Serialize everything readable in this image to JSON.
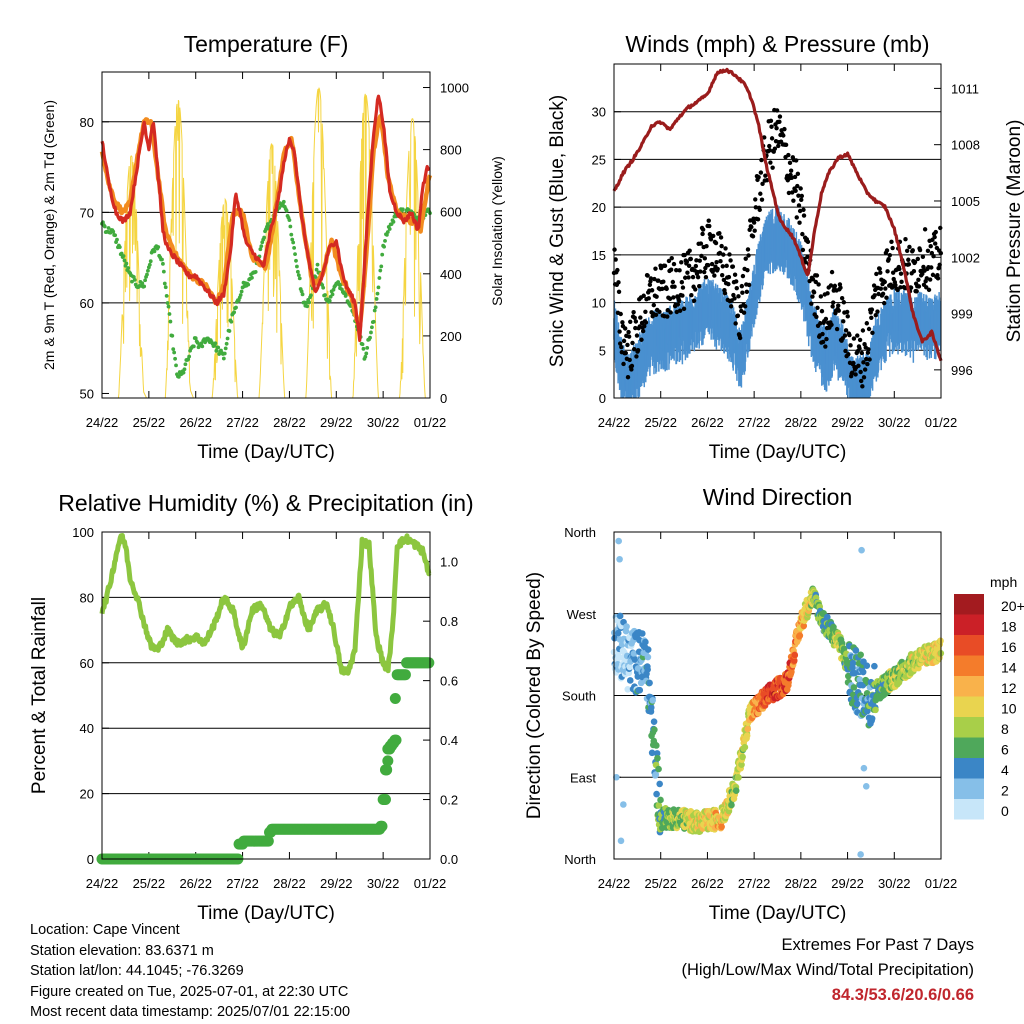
{
  "chart_data": [
    {
      "id": "temp",
      "type": "line",
      "title": "Temperature (F)",
      "xlabel": "Time (Day/UTC)",
      "ylabel": "2m & 9m T (Red, Orange) & 2m Td (Green)",
      "ylabel_right": "Solar Insolation (Yellow)",
      "x_ticks": [
        "24/22",
        "25/22",
        "26/22",
        "27/22",
        "28/22",
        "29/22",
        "30/22",
        "01/22"
      ],
      "xlim_days": [
        0,
        7
      ],
      "ylim": [
        49.5,
        85.5
      ],
      "y_ticks": [
        50,
        60,
        70,
        80
      ],
      "ylim_right": [
        0,
        1050
      ],
      "y_ticks_right": [
        0,
        200,
        400,
        600,
        800,
        1000
      ],
      "gridlines": [
        60,
        70,
        80
      ],
      "colors": {
        "t2m": "#d42a22",
        "t9m": "#f28c1f",
        "td": "#41ab3e",
        "solar": "#f5d542"
      },
      "series": [
        {
          "key": "t2m",
          "x": [
            0,
            0.15,
            0.3,
            0.45,
            0.6,
            0.75,
            0.9,
            1.0,
            1.05,
            1.1,
            1.2,
            1.3,
            1.4,
            1.55,
            1.7,
            1.85,
            2.0,
            2.15,
            2.3,
            2.45,
            2.6,
            2.75,
            2.85,
            2.95,
            3.05,
            3.15,
            3.3,
            3.45,
            3.6,
            3.75,
            3.9,
            4.0,
            4.1,
            4.25,
            4.4,
            4.55,
            4.7,
            4.85,
            5.0,
            5.1,
            5.2,
            5.3,
            5.4,
            5.5,
            5.6,
            5.7,
            5.8,
            5.9,
            6.0,
            6.15,
            6.3,
            6.45,
            6.6,
            6.75,
            6.85,
            6.95,
            7.0
          ],
          "y": [
            78,
            73,
            70,
            69,
            70,
            75,
            80,
            77,
            79,
            80,
            74,
            68,
            66,
            65,
            64,
            63,
            63,
            62,
            61,
            60,
            61,
            66,
            72,
            70,
            67,
            66,
            65,
            64,
            68,
            71,
            76,
            78,
            77,
            70,
            65,
            61,
            63,
            66,
            67,
            64,
            62,
            61,
            60,
            56,
            64,
            72,
            79,
            83,
            80,
            72,
            70,
            69,
            70,
            68,
            73,
            75,
            75
          ]
        },
        {
          "key": "t9m",
          "x": [
            0,
            0.15,
            0.3,
            0.45,
            0.6,
            0.75,
            0.9,
            1.05,
            1.2,
            1.35,
            1.6,
            1.9,
            2.2,
            2.45,
            2.6,
            2.8,
            3.0,
            3.2,
            3.5,
            3.7,
            3.9,
            4.05,
            4.25,
            4.5,
            4.7,
            4.9,
            5.1,
            5.3,
            5.5,
            5.65,
            5.8,
            5.95,
            6.1,
            6.3,
            6.6,
            6.8,
            6.95,
            7.0
          ],
          "y": [
            77,
            73,
            71,
            70,
            71,
            76,
            80,
            80,
            74,
            68,
            65,
            63,
            62,
            60,
            62,
            70,
            70,
            65,
            64,
            70,
            77,
            78,
            70,
            62,
            63,
            67,
            63,
            61,
            57,
            66,
            77,
            81,
            74,
            70,
            69,
            68,
            73,
            74
          ]
        },
        {
          "key": "td",
          "x": [
            0,
            0.1,
            0.2,
            0.3,
            0.45,
            0.6,
            0.75,
            0.9,
            1.0,
            1.1,
            1.2,
            1.3,
            1.4,
            1.5,
            1.6,
            1.7,
            1.85,
            2.0,
            2.1,
            2.2,
            2.3,
            2.45,
            2.6,
            2.75,
            2.9,
            3.0,
            3.1,
            3.2,
            3.3,
            3.4,
            3.5,
            3.6,
            3.7,
            3.8,
            3.9,
            4.0,
            4.1,
            4.2,
            4.3,
            4.4,
            4.5,
            4.6,
            4.7,
            4.8,
            4.9,
            5.0,
            5.1,
            5.2,
            5.3,
            5.4,
            5.5,
            5.6,
            5.7,
            5.8,
            5.9,
            6.0,
            6.1,
            6.2,
            6.3,
            6.45,
            6.6,
            6.75,
            6.9,
            7.0
          ],
          "y": [
            69,
            68,
            68,
            67,
            65,
            63,
            62,
            62,
            64,
            66,
            66,
            64,
            60,
            56,
            52,
            52,
            54,
            56,
            55,
            56,
            56,
            55,
            54,
            58,
            60,
            62,
            62,
            63,
            64,
            66,
            68,
            69,
            70,
            71,
            71,
            69,
            66,
            63,
            60,
            60,
            62,
            64,
            62,
            60,
            61,
            62,
            62,
            61,
            60,
            58,
            57,
            54,
            56,
            58,
            62,
            66,
            68,
            69,
            70,
            70,
            70,
            69,
            70,
            70
          ]
        }
      ],
      "solar_days": [
        {
          "rise": 0.35,
          "peak_day": 0.6,
          "peak": 780
        },
        {
          "rise": 1.35,
          "peak_day": 1.6,
          "peak": 960
        },
        {
          "rise": 2.35,
          "peak_day": 2.6,
          "peak": 640
        },
        {
          "rise": 3.35,
          "peak_day": 3.6,
          "peak": 820
        },
        {
          "rise": 4.35,
          "peak_day": 4.6,
          "peak": 1000
        },
        {
          "rise": 5.35,
          "peak_day": 5.6,
          "peak": 980
        },
        {
          "rise": 6.35,
          "peak_day": 6.6,
          "peak": 900
        }
      ]
    },
    {
      "id": "winds",
      "type": "line",
      "title": "Winds (mph) & Pressure (mb)",
      "xlabel": "Time (Day/UTC)",
      "ylabel": "Sonic Wind & Gust (Blue, Black)",
      "ylabel_right": "Station Pressure (Maroon)",
      "x_ticks": [
        "24/22",
        "25/22",
        "26/22",
        "27/22",
        "28/22",
        "29/22",
        "30/22",
        "01/22"
      ],
      "xlim_days": [
        0,
        7
      ],
      "ylim": [
        0,
        35
      ],
      "y_ticks": [
        0,
        5,
        10,
        15,
        20,
        25,
        30
      ],
      "ylim_right": [
        994.5,
        1012.3
      ],
      "y_ticks_right": [
        996,
        999,
        1002,
        1005,
        1008,
        1011
      ],
      "gridlines": [
        5,
        10,
        15,
        20,
        25,
        30
      ],
      "colors": {
        "wind": "#4a90d0",
        "gust": "#000000",
        "pressure": "#9a1c1c"
      },
      "series": [
        {
          "key": "wind",
          "x": [
            0,
            0.15,
            0.3,
            0.5,
            0.7,
            0.9,
            1.1,
            1.3,
            1.5,
            1.7,
            1.9,
            2.1,
            2.3,
            2.5,
            2.7,
            2.85,
            3.0,
            3.15,
            3.3,
            3.5,
            3.7,
            3.9,
            4.0,
            4.2,
            4.4,
            4.55,
            4.7,
            4.85,
            5.0,
            5.15,
            5.3,
            5.45,
            5.6,
            5.8,
            6.0,
            6.2,
            6.4,
            6.6,
            6.8,
            7.0
          ],
          "y": [
            8,
            4,
            2,
            4,
            6,
            7,
            7,
            8,
            8,
            9,
            10,
            10,
            9,
            8,
            5,
            8,
            12,
            15,
            17,
            18,
            17,
            15,
            14,
            9,
            6,
            5,
            7,
            6,
            4,
            2,
            2,
            3,
            6,
            8,
            9,
            9,
            8,
            9,
            8,
            9
          ]
        },
        {
          "key": "gust",
          "x": [
            0,
            0.15,
            0.3,
            0.5,
            0.7,
            0.9,
            1.1,
            1.3,
            1.5,
            1.7,
            1.9,
            2.1,
            2.3,
            2.5,
            2.7,
            2.85,
            3.0,
            3.15,
            3.3,
            3.5,
            3.7,
            3.9,
            4.0,
            4.2,
            4.4,
            4.55,
            4.7,
            4.85,
            5.0,
            5.15,
            5.3,
            5.45,
            5.6,
            5.8,
            6.0,
            6.2,
            6.4,
            6.6,
            6.8,
            7.0
          ],
          "y": [
            14,
            7,
            5,
            7,
            10,
            11,
            11,
            12,
            12,
            13,
            15,
            16,
            14,
            12,
            9,
            13,
            19,
            23,
            26,
            28,
            25,
            22,
            19,
            13,
            9,
            8,
            11,
            9,
            6,
            4,
            4,
            6,
            11,
            13,
            14,
            14,
            13,
            15,
            14,
            15
          ]
        },
        {
          "key": "pressure",
          "x": [
            0,
            0.2,
            0.4,
            0.6,
            0.8,
            1.0,
            1.2,
            1.4,
            1.6,
            1.8,
            2.0,
            2.2,
            2.4,
            2.6,
            2.8,
            2.95,
            3.1,
            3.25,
            3.4,
            3.55,
            3.7,
            3.85,
            4.0,
            4.15,
            4.3,
            4.45,
            4.6,
            4.8,
            5.0,
            5.2,
            5.4,
            5.6,
            5.8,
            6.0,
            6.2,
            6.4,
            6.6,
            6.8,
            7.0
          ],
          "y": [
            1005.5,
            1006.5,
            1007.2,
            1008,
            1009,
            1009.2,
            1008.8,
            1009.5,
            1010,
            1010.3,
            1010.7,
            1011.8,
            1012,
            1011.7,
            1011.2,
            1010.4,
            1009,
            1007,
            1005.5,
            1004,
            1003.5,
            1003,
            1002,
            1001,
            1003.5,
            1005.5,
            1006.5,
            1007.3,
            1007.5,
            1006.5,
            1005.5,
            1005,
            1004.7,
            1003.5,
            1001.5,
            999,
            997.5,
            998,
            996.5
          ]
        }
      ]
    },
    {
      "id": "rh",
      "type": "line",
      "title": "Relative Humidity (%) & Precipitation (in)",
      "xlabel": "Time (Day/UTC)",
      "ylabel": "Percent & Total Rainfall",
      "x_ticks": [
        "24/22",
        "25/22",
        "26/22",
        "27/22",
        "28/22",
        "29/22",
        "30/22",
        "01/22"
      ],
      "xlim_days": [
        0,
        7
      ],
      "ylim": [
        0,
        100
      ],
      "y_ticks": [
        0,
        20,
        40,
        60,
        80,
        100
      ],
      "ylim_right": [
        0,
        1.1
      ],
      "y_ticks_right": [
        "0.0",
        "0.2",
        "0.4",
        "0.6",
        "0.8",
        "1.0"
      ],
      "gridlines": [
        20,
        40,
        60,
        80
      ],
      "colors": {
        "rh": "#8cc63f",
        "precip": "#41ab3e"
      },
      "series": [
        {
          "key": "rh",
          "x": [
            0,
            0.1,
            0.2,
            0.3,
            0.4,
            0.5,
            0.6,
            0.75,
            0.9,
            1.05,
            1.2,
            1.4,
            1.6,
            1.8,
            2.0,
            2.2,
            2.4,
            2.6,
            2.8,
            3.0,
            3.2,
            3.4,
            3.6,
            3.8,
            4.0,
            4.2,
            4.4,
            4.6,
            4.8,
            4.95,
            5.1,
            5.25,
            5.4,
            5.55,
            5.7,
            5.85,
            6.0,
            6.1,
            6.2,
            6.3,
            6.5,
            6.7,
            6.85,
            7.0
          ],
          "y": [
            76,
            80,
            86,
            93,
            99,
            96,
            86,
            80,
            72,
            65,
            64,
            70,
            66,
            67,
            68,
            66,
            72,
            80,
            76,
            64,
            76,
            78,
            70,
            68,
            77,
            80,
            70,
            76,
            78,
            70,
            58,
            57,
            64,
            97,
            96,
            68,
            60,
            58,
            70,
            96,
            98,
            96,
            94,
            86
          ]
        },
        {
          "key": "precip",
          "x": [
            0,
            0.5,
            1,
            1.5,
            2,
            2.5,
            2.85,
            2.9,
            3.0,
            3.2,
            3.4,
            3.55,
            3.6,
            4.0,
            4.5,
            5.0,
            5.5,
            5.95,
            6.0,
            6.05,
            6.08,
            6.1,
            6.15,
            6.2,
            6.25,
            6.3,
            6.5,
            6.7,
            7.0
          ],
          "y": [
            0,
            0,
            0,
            0,
            0,
            0,
            0,
            0.05,
            0.06,
            0.06,
            0.06,
            0.09,
            0.1,
            0.1,
            0.1,
            0.1,
            0.1,
            0.11,
            0.2,
            0.3,
            0.33,
            0.37,
            0.38,
            0.39,
            0.4,
            0.62,
            0.66,
            0.66,
            0.66
          ]
        }
      ]
    },
    {
      "id": "dir",
      "type": "scatter",
      "title": "Wind Direction",
      "xlabel": "Time (Day/UTC)",
      "ylabel": "Direction (Colored By Speed)",
      "x_ticks": [
        "24/22",
        "25/22",
        "26/22",
        "27/22",
        "28/22",
        "29/22",
        "30/22",
        "01/22"
      ],
      "xlim_days": [
        0,
        7
      ],
      "ylim": [
        0,
        360
      ],
      "y_tick_labels": [
        "North",
        "East",
        "South",
        "West",
        "North"
      ],
      "y_tick_values": [
        0,
        90,
        180,
        270,
        360
      ],
      "colorbar": {
        "unit": "mph",
        "labels": [
          "20+",
          "18",
          "16",
          "14",
          "12",
          "10",
          "8",
          "6",
          "4",
          "2",
          "0"
        ],
        "colors": [
          "#a31b1f",
          "#cb2027",
          "#e84c26",
          "#f47c2b",
          "#f9b24b",
          "#e9d44f",
          "#a8cf49",
          "#4fa85b",
          "#3b86c6",
          "#86bfe8",
          "#c7e6f9"
        ]
      },
      "points_envelope": [
        {
          "x": 0.05,
          "dir": 240,
          "spd": 2
        },
        {
          "x": 0.3,
          "dir": 220,
          "spd": 3
        },
        {
          "x": 0.7,
          "dir": 215,
          "spd": 5
        },
        {
          "x": 1.0,
          "dir": 45,
          "spd": 7
        },
        {
          "x": 1.4,
          "dir": 45,
          "spd": 9
        },
        {
          "x": 1.8,
          "dir": 40,
          "spd": 11
        },
        {
          "x": 2.3,
          "dir": 45,
          "spd": 12
        },
        {
          "x": 2.6,
          "dir": 80,
          "spd": 9
        },
        {
          "x": 2.9,
          "dir": 160,
          "spd": 11
        },
        {
          "x": 3.3,
          "dir": 180,
          "spd": 18
        },
        {
          "x": 3.7,
          "dir": 195,
          "spd": 17
        },
        {
          "x": 4.0,
          "dir": 260,
          "spd": 13
        },
        {
          "x": 4.25,
          "dir": 290,
          "spd": 9
        },
        {
          "x": 4.5,
          "dir": 260,
          "spd": 6
        },
        {
          "x": 4.8,
          "dir": 240,
          "spd": 10
        },
        {
          "x": 5.1,
          "dir": 200,
          "spd": 5
        },
        {
          "x": 5.5,
          "dir": 180,
          "spd": 6
        },
        {
          "x": 6.0,
          "dir": 200,
          "spd": 9
        },
        {
          "x": 6.5,
          "dir": 220,
          "spd": 10
        },
        {
          "x": 7.0,
          "dir": 230,
          "spd": 11
        }
      ]
    }
  ],
  "info": {
    "location": "Location: Cape Vincent",
    "elevation": "Station elevation: 83.6371 m",
    "latlon": "Station lat/lon: 44.1045; -76.3269",
    "created": "Figure created on Tue, 2025-07-01, at 22:30 UTC",
    "recent": "Most recent data timestamp: 2025/07/01 22:15:00"
  },
  "extremes": {
    "title": "Extremes For Past 7 Days",
    "subtitle": "(High/Low/Max Wind/Total Precipitation)",
    "values": "84.3/53.6/20.6/0.66"
  }
}
